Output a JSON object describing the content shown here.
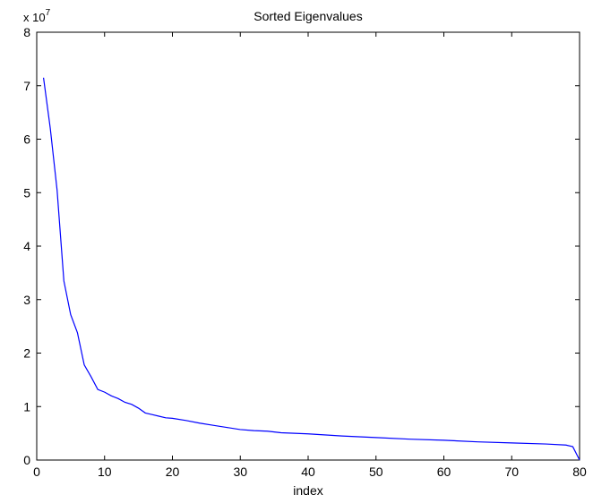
{
  "chart_data": {
    "type": "line",
    "title": "Sorted Eigenvalues",
    "xlabel": "index",
    "ylabel": "",
    "y_multiplier_label": {
      "base": "x 10",
      "exponent": "7"
    },
    "xlim": [
      0,
      80
    ],
    "ylim": [
      0,
      8
    ],
    "y_scale_factor": 10000000,
    "xticks": [
      0,
      10,
      20,
      30,
      40,
      50,
      60,
      70,
      80
    ],
    "yticks": [
      0,
      1,
      2,
      3,
      4,
      5,
      6,
      7,
      8
    ],
    "grid": false,
    "legend": "none",
    "line_color": "#0000ff",
    "series": [
      {
        "x": [
          1,
          2,
          3,
          4,
          5,
          6,
          7,
          8,
          9,
          10,
          11,
          12,
          13,
          14,
          15,
          16,
          17,
          18,
          19,
          20,
          22,
          24,
          26,
          28,
          30,
          32,
          34,
          36,
          40,
          45,
          50,
          55,
          60,
          65,
          70,
          75,
          78,
          79,
          80
        ],
        "values": [
          7.15,
          6.2,
          5.05,
          3.35,
          2.72,
          2.38,
          1.78,
          1.56,
          1.32,
          1.27,
          1.2,
          1.15,
          1.08,
          1.04,
          0.97,
          0.88,
          0.85,
          0.82,
          0.79,
          0.78,
          0.74,
          0.69,
          0.65,
          0.61,
          0.57,
          0.55,
          0.54,
          0.51,
          0.49,
          0.45,
          0.42,
          0.39,
          0.37,
          0.34,
          0.32,
          0.3,
          0.28,
          0.25,
          0.0
        ]
      }
    ]
  }
}
